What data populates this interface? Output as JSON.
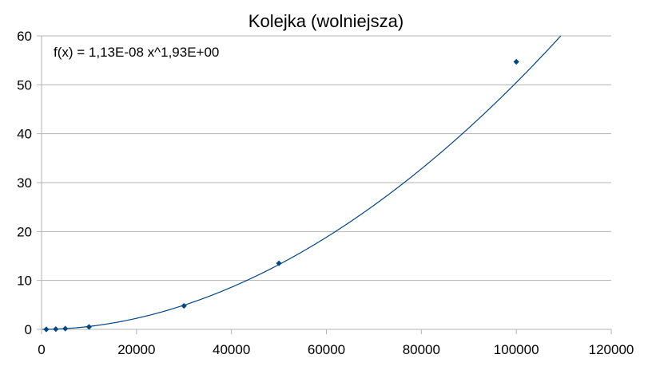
{
  "chart_data": {
    "type": "scatter",
    "title": "Kolejka (wolniejsza)",
    "xlabel": "",
    "ylabel": "",
    "xlim": [
      0,
      120000
    ],
    "ylim": [
      0,
      60
    ],
    "x_ticks": [
      "0",
      "20000",
      "40000",
      "60000",
      "80000",
      "100000",
      "120000"
    ],
    "y_ticks": [
      "0",
      "10",
      "20",
      "30",
      "40",
      "50",
      "60"
    ],
    "grid": "horizontal",
    "series": [
      {
        "points": [
          {
            "x": 1000,
            "y": 0.0
          },
          {
            "x": 3000,
            "y": 0.05
          },
          {
            "x": 5000,
            "y": 0.15
          },
          {
            "x": 10000,
            "y": 0.5
          },
          {
            "x": 30000,
            "y": 4.8
          },
          {
            "x": 50000,
            "y": 13.5
          },
          {
            "x": 100000,
            "y": 54.7
          }
        ],
        "marker": "diamond",
        "color": "#004586"
      }
    ],
    "trendline": {
      "type": "power",
      "coefficient": 1.13e-08,
      "exponent": 1.93,
      "label": "f(x) = 1,13E-08 x^1,93E+00",
      "color": "#004586"
    }
  }
}
